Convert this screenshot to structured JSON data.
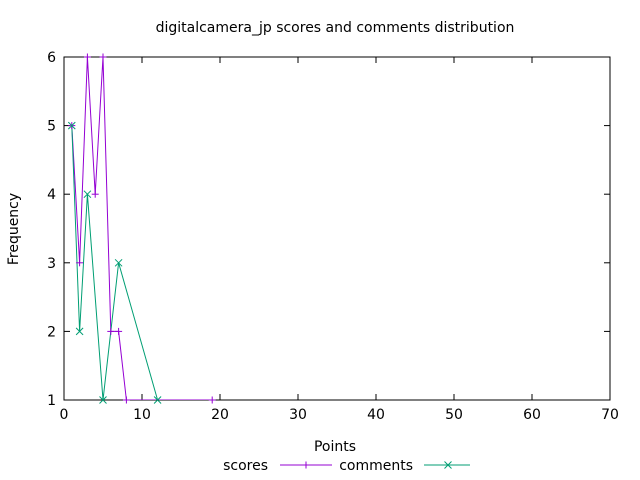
{
  "chart_data": {
    "type": "line",
    "title": "digitalcamera_jp scores and comments distribution",
    "xlabel": "Points",
    "ylabel": "Frequency",
    "xlim": [
      0,
      70
    ],
    "ylim": [
      1,
      6
    ],
    "xticks": [
      0,
      10,
      20,
      30,
      40,
      50,
      60,
      70
    ],
    "yticks": [
      1,
      2,
      3,
      4,
      5,
      6
    ],
    "grid": false,
    "legend_position": "bottom",
    "series": [
      {
        "name": "scores",
        "color": "#9400d3",
        "marker": "plus",
        "points": [
          [
            1,
            5
          ],
          [
            2,
            3
          ],
          [
            3,
            6
          ],
          [
            4,
            4
          ],
          [
            5,
            6
          ],
          [
            6,
            2
          ],
          [
            7,
            2
          ],
          [
            8,
            1
          ],
          [
            19,
            1
          ]
        ]
      },
      {
        "name": "comments",
        "color": "#009e73",
        "marker": "cross",
        "points": [
          [
            1,
            5
          ],
          [
            2,
            2
          ],
          [
            3,
            4
          ],
          [
            5,
            1
          ],
          [
            7,
            3
          ],
          [
            12,
            1
          ]
        ]
      }
    ]
  }
}
